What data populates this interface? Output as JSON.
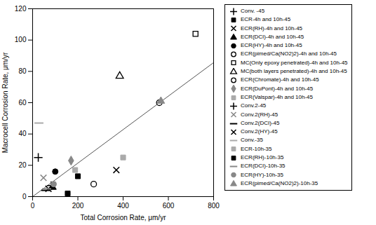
{
  "chart_data": {
    "type": "scatter",
    "xlabel": "Total Corrosion Rate, μm/yr",
    "ylabel": "Macrocell Corrosion Rate, μm/yr",
    "xlim": [
      0,
      800
    ],
    "ylim": [
      0,
      120
    ],
    "xticks": [
      0,
      200,
      400,
      600,
      800
    ],
    "yticks": [
      0,
      20,
      40,
      60,
      80,
      100,
      120
    ],
    "grid": false,
    "legend": "right",
    "trendline": {
      "x": [
        0,
        800
      ],
      "y": [
        0,
        85.6
      ],
      "color": "#555555"
    },
    "series": [
      {
        "name": "Conv. -45",
        "x": [
          25
        ],
        "values": [
          25
        ],
        "marker": "plus",
        "color": "black"
      },
      {
        "name": "ECR-4h and 10h-45",
        "x": [
          155
        ],
        "values": [
          2
        ],
        "marker": "square",
        "color": "black"
      },
      {
        "name": "ECR(RH)-4h and 10h-45",
        "x": [
          70
        ],
        "values": [
          5
        ],
        "marker": "x",
        "color": "black"
      },
      {
        "name": "ECR(DCI)-4h and 10h-45",
        "x": [
          88
        ],
        "values": [
          6
        ],
        "marker": "triangle",
        "color": "black"
      },
      {
        "name": "ECR(HY)-4h and 10h-45",
        "x": [
          100
        ],
        "values": [
          16
        ],
        "marker": "circle",
        "color": "black"
      },
      {
        "name": "ECR(pimed/Ca(NO2)2)-4h and 10h-45",
        "x": [
          270
        ],
        "values": [
          8
        ],
        "marker": "circle-open",
        "color": "black"
      },
      {
        "name": "MC(Only epoxy penetrated)-4h and 10h-45",
        "x": [
          720
        ],
        "values": [
          104
        ],
        "marker": "square-open",
        "color": "black"
      },
      {
        "name": "MC(both layers penetrated)-4h and 10h-45",
        "x": [
          385
        ],
        "values": [
          77
        ],
        "marker": "triangle-open",
        "color": "black"
      },
      {
        "name": "ECR(Chromate)-4h and 10h-45",
        "x": [
          560
        ],
        "values": [
          60
        ],
        "marker": "circle-open",
        "color": "black"
      },
      {
        "name": "ECR(DuPont)-4h and 10h-45",
        "x": [
          170
        ],
        "values": [
          23
        ],
        "marker": "diamond",
        "color": "#888888"
      },
      {
        "name": "ECR(Valspar)-4h and 10h-45",
        "x": [
          400
        ],
        "values": [
          25
        ],
        "marker": "square",
        "color": "#aaaaaa"
      },
      {
        "name": "Conv.2-45",
        "x": [
          82
        ],
        "values": [
          7
        ],
        "marker": "plus",
        "color": "black"
      },
      {
        "name": "Conv.2(RH)-45",
        "x": [
          48
        ],
        "values": [
          12
        ],
        "marker": "x",
        "color": "#888888"
      },
      {
        "name": "Conv.2(DCI)-45",
        "x": [
          58
        ],
        "values": [
          4
        ],
        "marker": "hline",
        "color": "black"
      },
      {
        "name": "Conv.2(HY)-45",
        "x": [
          370
        ],
        "values": [
          17
        ],
        "marker": "x",
        "color": "black"
      },
      {
        "name": "Conv.-35",
        "x": [
          28
        ],
        "values": [
          47
        ],
        "marker": "hline",
        "color": "#aaaaaa"
      },
      {
        "name": "ECR-10h-35",
        "x": [
          188
        ],
        "values": [
          17
        ],
        "marker": "square",
        "color": "#aaaaaa"
      },
      {
        "name": "ECR(RH)-10h-35",
        "x": [
          200
        ],
        "values": [
          13
        ],
        "marker": "square",
        "color": "black"
      },
      {
        "name": "ECR(DCI)-10h-35",
        "x": [
          62
        ],
        "values": [
          5
        ],
        "marker": "hline",
        "color": "#888888"
      },
      {
        "name": "ECR(HY)-10h-35",
        "x": [
          93
        ],
        "values": [
          8
        ],
        "marker": "circle",
        "color": "#888888"
      },
      {
        "name": "ECR(pimed/Ca(NO2)2)-10h-35",
        "x": [
          567
        ],
        "values": [
          61
        ],
        "marker": "triangle",
        "color": "#888888"
      }
    ]
  }
}
